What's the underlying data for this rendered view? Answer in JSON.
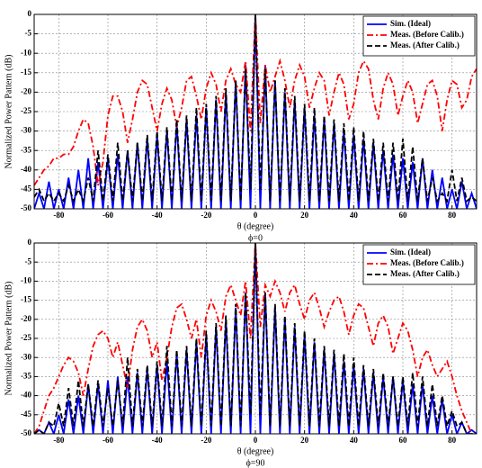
{
  "chart_data": [
    {
      "type": "line",
      "title": "ϕ=0",
      "xlabel": "θ (degree)",
      "ylabel": "Normalized Power Pattern (dB)",
      "xlim": [
        -90,
        90
      ],
      "ylim": [
        -50,
        0
      ],
      "xticks": [
        -80,
        -60,
        -40,
        -20,
        0,
        20,
        40,
        60,
        80
      ],
      "yticks": [
        0,
        -5,
        -10,
        -15,
        -20,
        -25,
        -30,
        -35,
        -40,
        -45,
        -50
      ],
      "grid": true,
      "legend": "upper right",
      "x": [
        -90,
        -88,
        -86,
        -84,
        -82,
        -80,
        -78,
        -76,
        -74,
        -72,
        -70,
        -68,
        -66,
        -64,
        -62,
        -60,
        -58,
        -56,
        -54,
        -52,
        -50,
        -48,
        -46,
        -44,
        -42,
        -40,
        -38,
        -36,
        -34,
        -32,
        -30,
        -28,
        -26,
        -24,
        -22,
        -20,
        -18,
        -16,
        -14,
        -12,
        -10,
        -8,
        -6,
        -4,
        -2,
        0,
        2,
        4,
        6,
        8,
        10,
        12,
        14,
        16,
        18,
        20,
        22,
        24,
        26,
        28,
        30,
        32,
        34,
        36,
        38,
        40,
        42,
        44,
        46,
        48,
        50,
        52,
        54,
        56,
        58,
        60,
        62,
        64,
        66,
        68,
        70,
        72,
        74,
        76,
        78,
        80,
        82,
        84,
        86,
        88,
        90
      ],
      "series": [
        {
          "name": "Sim. (Ideal)",
          "color": "#0000ff",
          "dash": "solid",
          "values": [
            -50,
            -46,
            -50,
            -43,
            -50,
            -45,
            -50,
            -42,
            -50,
            -40,
            -50,
            -37,
            -50,
            -38,
            -50,
            -37,
            -50,
            -36,
            -50,
            -35,
            -50,
            -33,
            -50,
            -32,
            -50,
            -31,
            -50,
            -30,
            -50,
            -28,
            -50,
            -27,
            -50,
            -26,
            -50,
            -24,
            -50,
            -22,
            -50,
            -20,
            -50,
            -17,
            -50,
            -13,
            -50,
            0,
            -50,
            -13,
            -50,
            -17,
            -50,
            -20,
            -50,
            -22,
            -50,
            -24,
            -50,
            -26,
            -50,
            -27,
            -50,
            -28,
            -50,
            -30,
            -50,
            -31,
            -50,
            -32,
            -50,
            -33,
            -50,
            -35,
            -50,
            -36,
            -50,
            -37,
            -50,
            -38,
            -50,
            -37,
            -50,
            -40,
            -50,
            -42,
            -50,
            -45,
            -50,
            -43,
            -50,
            -46,
            -50
          ]
        },
        {
          "name": "Meas. (Before Calib.)",
          "color": "#ff0000",
          "dash": "dashdot",
          "values": [
            -44,
            -42,
            -40,
            -39,
            -37,
            -37,
            -36,
            -36,
            -34,
            -30,
            -27,
            -28,
            -34,
            -44,
            -38,
            -26,
            -21,
            -21,
            -25,
            -33,
            -27,
            -20,
            -17,
            -18,
            -24,
            -30,
            -23,
            -19,
            -22,
            -29,
            -24,
            -17,
            -16,
            -21,
            -27,
            -19,
            -15,
            -18,
            -25,
            -17,
            -14,
            -18,
            -20,
            -12,
            -30,
            0,
            -28,
            -13,
            -20,
            -16,
            -12,
            -17,
            -24,
            -17,
            -13,
            -16,
            -24,
            -19,
            -15,
            -17,
            -26,
            -20,
            -15,
            -18,
            -27,
            -23,
            -15,
            -12,
            -14,
            -22,
            -27,
            -19,
            -15,
            -18,
            -26,
            -21,
            -17,
            -20,
            -28,
            -23,
            -18,
            -17,
            -21,
            -30,
            -22,
            -17,
            -18,
            -24,
            -22,
            -16,
            -14
          ]
        },
        {
          "name": "Meas. (After Calib.)",
          "color": "#000000",
          "dash": "dashed",
          "values": [
            -47,
            -45,
            -48,
            -46,
            -48,
            -46,
            -48,
            -44,
            -48,
            -45,
            -48,
            -42,
            -48,
            -35,
            -48,
            -36,
            -48,
            -33,
            -48,
            -35,
            -48,
            -33,
            -48,
            -31,
            -48,
            -30,
            -48,
            -29,
            -48,
            -27,
            -48,
            -26,
            -48,
            -24,
            -48,
            -23,
            -48,
            -21,
            -48,
            -19,
            -48,
            -17,
            -48,
            -14,
            -45,
            0,
            -45,
            -14,
            -48,
            -17,
            -48,
            -19,
            -48,
            -21,
            -48,
            -23,
            -48,
            -24,
            -48,
            -26,
            -48,
            -27,
            -48,
            -28,
            -48,
            -29,
            -48,
            -30,
            -48,
            -32,
            -48,
            -33,
            -48,
            -33,
            -48,
            -32,
            -48,
            -34,
            -48,
            -37,
            -48,
            -42,
            -48,
            -46,
            -48,
            -40,
            -48,
            -42,
            -48,
            -47,
            -48
          ]
        }
      ]
    },
    {
      "type": "line",
      "title": "ϕ=90",
      "xlabel": "θ (degree)",
      "ylabel": "Normalized Power Pattern (dB)",
      "xlim": [
        -90,
        90
      ],
      "ylim": [
        -50,
        0
      ],
      "xticks": [
        -80,
        -60,
        -40,
        -20,
        0,
        20,
        40,
        60,
        80
      ],
      "yticks": [
        0,
        -5,
        -10,
        -15,
        -20,
        -25,
        -30,
        -35,
        -40,
        -45,
        -50
      ],
      "grid": true,
      "legend": "upper right",
      "x": [
        -90,
        -88,
        -86,
        -84,
        -82,
        -80,
        -78,
        -76,
        -74,
        -72,
        -70,
        -68,
        -66,
        -64,
        -62,
        -60,
        -58,
        -56,
        -54,
        -52,
        -50,
        -48,
        -46,
        -44,
        -42,
        -40,
        -38,
        -36,
        -34,
        -32,
        -30,
        -28,
        -26,
        -24,
        -22,
        -20,
        -18,
        -16,
        -14,
        -12,
        -10,
        -8,
        -6,
        -4,
        -2,
        0,
        2,
        4,
        6,
        8,
        10,
        12,
        14,
        16,
        18,
        20,
        22,
        24,
        26,
        28,
        30,
        32,
        34,
        36,
        38,
        40,
        42,
        44,
        46,
        48,
        50,
        52,
        54,
        56,
        58,
        60,
        62,
        64,
        66,
        68,
        70,
        72,
        74,
        76,
        78,
        80,
        82,
        84,
        86,
        88,
        90
      ],
      "series": [
        {
          "name": "Sim. (Ideal)",
          "color": "#0000ff",
          "dash": "solid",
          "values": [
            -50,
            -49,
            -50,
            -47,
            -50,
            -45,
            -50,
            -41,
            -50,
            -40,
            -50,
            -37,
            -50,
            -37,
            -50,
            -36,
            -50,
            -35,
            -50,
            -35,
            -50,
            -34,
            -50,
            -33,
            -50,
            -32,
            -50,
            -31,
            -50,
            -29,
            -50,
            -28,
            -50,
            -26,
            -50,
            -24,
            -50,
            -22,
            -50,
            -20,
            -50,
            -17,
            -50,
            -13,
            -50,
            0,
            -50,
            -13,
            -50,
            -17,
            -50,
            -20,
            -50,
            -22,
            -50,
            -24,
            -50,
            -26,
            -50,
            -28,
            -50,
            -29,
            -50,
            -31,
            -50,
            -32,
            -50,
            -33,
            -50,
            -34,
            -50,
            -35,
            -50,
            -35,
            -50,
            -36,
            -50,
            -37,
            -50,
            -37,
            -50,
            -40,
            -50,
            -41,
            -50,
            -45,
            -50,
            -47,
            -50,
            -49,
            -50
          ]
        },
        {
          "name": "Meas. (Before Calib.)",
          "color": "#ff0000",
          "dash": "dashdot",
          "values": [
            -50,
            -48,
            -44,
            -40,
            -38,
            -35,
            -32,
            -30,
            -31,
            -34,
            -40,
            -33,
            -27,
            -24,
            -23,
            -25,
            -30,
            -26,
            -32,
            -38,
            -28,
            -22,
            -20,
            -23,
            -30,
            -26,
            -36,
            -30,
            -22,
            -17,
            -16,
            -20,
            -25,
            -20,
            -30,
            -19,
            -15,
            -18,
            -23,
            -14,
            -11,
            -15,
            -19,
            -10,
            -25,
            0,
            -22,
            -11,
            -14,
            -10,
            -13,
            -18,
            -13,
            -11,
            -16,
            -20,
            -15,
            -13,
            -17,
            -22,
            -18,
            -15,
            -14,
            -18,
            -24,
            -19,
            -16,
            -17,
            -22,
            -27,
            -21,
            -19,
            -22,
            -29,
            -25,
            -21,
            -23,
            -28,
            -35,
            -30,
            -28,
            -32,
            -35,
            -33,
            -31,
            -35,
            -40,
            -44,
            -47,
            -50,
            -50
          ]
        },
        {
          "name": "Meas. (After Calib.)",
          "color": "#000000",
          "dash": "dashed",
          "values": [
            -50,
            -49,
            -50,
            -47,
            -48,
            -42,
            -48,
            -38,
            -48,
            -36,
            -48,
            -37,
            -48,
            -36,
            -48,
            -38,
            -48,
            -36,
            -48,
            -30,
            -48,
            -33,
            -48,
            -32,
            -48,
            -31,
            -48,
            -27,
            -48,
            -28,
            -48,
            -27,
            -48,
            -25,
            -48,
            -23,
            -48,
            -21,
            -48,
            -19,
            -48,
            -16,
            -48,
            -13,
            -45,
            0,
            -45,
            -13,
            -48,
            -16,
            -48,
            -19,
            -48,
            -21,
            -48,
            -23,
            -48,
            -25,
            -48,
            -27,
            -48,
            -28,
            -48,
            -29,
            -48,
            -30,
            -48,
            -32,
            -48,
            -33,
            -48,
            -34,
            -48,
            -35,
            -48,
            -35,
            -48,
            -34,
            -48,
            -35,
            -48,
            -37,
            -48,
            -40,
            -48,
            -44,
            -48,
            -47,
            -50,
            -50,
            -50
          ]
        }
      ]
    }
  ]
}
